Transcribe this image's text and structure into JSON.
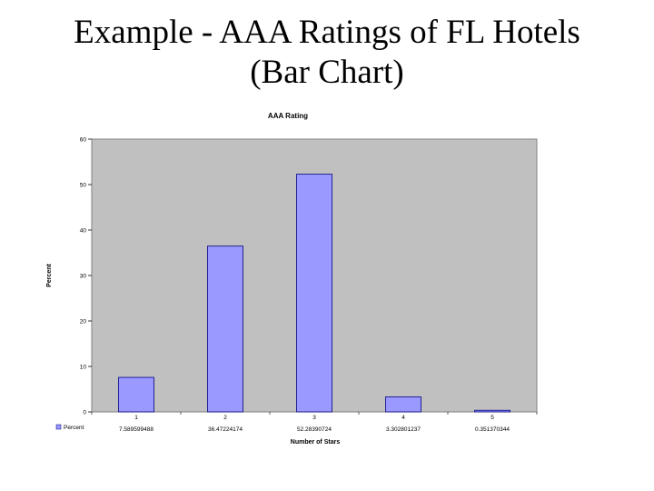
{
  "slide": {
    "title_line1": "Example - AAA Ratings of FL Hotels",
    "title_line2": "(Bar Chart)"
  },
  "chart_data": {
    "type": "bar",
    "title": "AAA Rating",
    "xlabel": "Number of Stars",
    "ylabel": "Percent",
    "categories": [
      "1",
      "2",
      "3",
      "4",
      "5"
    ],
    "series": [
      {
        "name": "Percent",
        "values": [
          7.589599488,
          36.47224174,
          52.28390724,
          3.302801237,
          0.351370344
        ],
        "value_labels": [
          "7.589599488",
          "36.47224174",
          "52.28390724",
          "3.302801237",
          "0.351370344"
        ]
      }
    ],
    "ylim": [
      0,
      60
    ],
    "yticks": [
      0,
      10,
      20,
      30,
      40,
      50,
      60
    ],
    "grid": false,
    "legend_position": "bottom-left",
    "colors": {
      "plot_background": "#c0c0c0",
      "bar_fill": "#9999ff",
      "bar_stroke": "#000080",
      "axis": "#808080"
    }
  }
}
